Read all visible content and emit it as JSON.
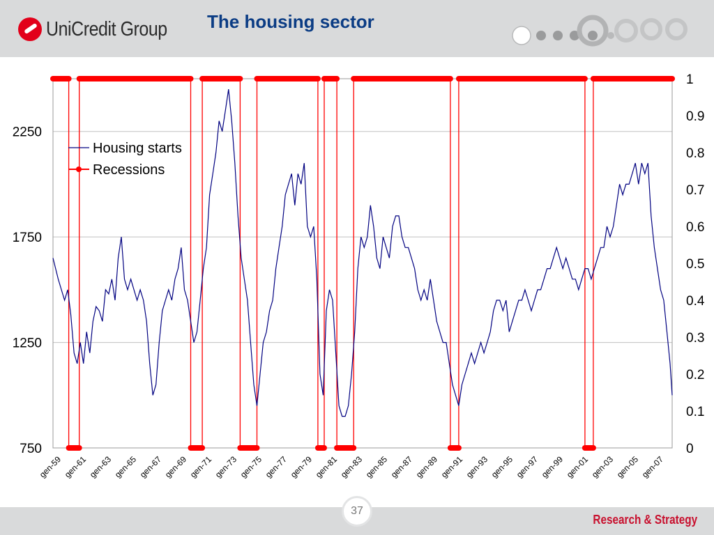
{
  "header": {
    "logo_text": "UniCredit Group",
    "title": "The housing sector"
  },
  "footer": {
    "page_number": "37",
    "brand": "Research & Strategy"
  },
  "colors": {
    "header_bg": "#d9dadb",
    "title": "#0b3c84",
    "housing_line": "#000080",
    "recession": "#ff0000",
    "brand_red": "#e2001a"
  },
  "chart_data": {
    "type": "line",
    "title": "",
    "legend": {
      "placement": "top-left",
      "items": [
        "Housing starts",
        "Recessions"
      ]
    },
    "x_ticks": [
      "gen-59",
      "gen-61",
      "gen-63",
      "gen-65",
      "gen-67",
      "gen-69",
      "gen-71",
      "gen-73",
      "gen-75",
      "gen-77",
      "gen-79",
      "gen-81",
      "gen-83",
      "gen-85",
      "gen-87",
      "gen-89",
      "gen-91",
      "gen-93",
      "gen-95",
      "gen-97",
      "gen-99",
      "gen-01",
      "gen-03",
      "gen-05",
      "gen-07"
    ],
    "x_range": [
      "1959-01",
      "2008-02"
    ],
    "y_left": {
      "ticks": [
        "750",
        "1250",
        "1750",
        "2250"
      ],
      "range": [
        750,
        2500
      ]
    },
    "y_right": {
      "ticks": [
        "0",
        "0.1",
        "0.2",
        "0.3",
        "0.4",
        "0.5",
        "0.6",
        "0.7",
        "0.8",
        "0.9",
        "1"
      ],
      "range": [
        0,
        1
      ]
    },
    "grid": "horizontal",
    "series": [
      {
        "name": "Housing starts",
        "axis": "left",
        "points": [
          [
            "1959-01",
            1650
          ],
          [
            "1959-06",
            1550
          ],
          [
            "1959-12",
            1450
          ],
          [
            "1960-03",
            1500
          ],
          [
            "1960-06",
            1380
          ],
          [
            "1960-09",
            1200
          ],
          [
            "1960-12",
            1150
          ],
          [
            "1961-03",
            1250
          ],
          [
            "1961-06",
            1150
          ],
          [
            "1961-09",
            1300
          ],
          [
            "1961-12",
            1200
          ],
          [
            "1962-03",
            1350
          ],
          [
            "1962-06",
            1420
          ],
          [
            "1962-09",
            1400
          ],
          [
            "1962-12",
            1350
          ],
          [
            "1963-03",
            1500
          ],
          [
            "1963-06",
            1480
          ],
          [
            "1963-09",
            1550
          ],
          [
            "1963-12",
            1450
          ],
          [
            "1964-03",
            1650
          ],
          [
            "1964-06",
            1750
          ],
          [
            "1964-09",
            1550
          ],
          [
            "1964-12",
            1500
          ],
          [
            "1965-03",
            1550
          ],
          [
            "1965-06",
            1500
          ],
          [
            "1965-09",
            1450
          ],
          [
            "1965-12",
            1500
          ],
          [
            "1966-03",
            1450
          ],
          [
            "1966-06",
            1350
          ],
          [
            "1966-09",
            1150
          ],
          [
            "1966-12",
            1000
          ],
          [
            "1967-03",
            1050
          ],
          [
            "1967-06",
            1250
          ],
          [
            "1967-09",
            1400
          ],
          [
            "1967-12",
            1450
          ],
          [
            "1968-03",
            1500
          ],
          [
            "1968-06",
            1450
          ],
          [
            "1968-09",
            1550
          ],
          [
            "1968-12",
            1600
          ],
          [
            "1969-03",
            1700
          ],
          [
            "1969-06",
            1500
          ],
          [
            "1969-09",
            1450
          ],
          [
            "1969-12",
            1350
          ],
          [
            "1970-03",
            1250
          ],
          [
            "1970-06",
            1300
          ],
          [
            "1970-09",
            1450
          ],
          [
            "1970-12",
            1600
          ],
          [
            "1971-03",
            1700
          ],
          [
            "1971-06",
            1950
          ],
          [
            "1971-09",
            2050
          ],
          [
            "1971-12",
            2150
          ],
          [
            "1972-03",
            2300
          ],
          [
            "1972-06",
            2250
          ],
          [
            "1972-09",
            2350
          ],
          [
            "1972-12",
            2450
          ],
          [
            "1973-03",
            2300
          ],
          [
            "1973-06",
            2100
          ],
          [
            "1973-09",
            1850
          ],
          [
            "1973-12",
            1650
          ],
          [
            "1974-03",
            1550
          ],
          [
            "1974-06",
            1450
          ],
          [
            "1974-09",
            1250
          ],
          [
            "1974-12",
            1050
          ],
          [
            "1975-03",
            950
          ],
          [
            "1975-06",
            1100
          ],
          [
            "1975-09",
            1250
          ],
          [
            "1975-12",
            1300
          ],
          [
            "1976-03",
            1400
          ],
          [
            "1976-06",
            1450
          ],
          [
            "1976-09",
            1600
          ],
          [
            "1976-12",
            1700
          ],
          [
            "1977-03",
            1800
          ],
          [
            "1977-06",
            1950
          ],
          [
            "1977-09",
            2000
          ],
          [
            "1977-12",
            2050
          ],
          [
            "1978-03",
            1900
          ],
          [
            "1978-06",
            2050
          ],
          [
            "1978-09",
            2000
          ],
          [
            "1978-12",
            2100
          ],
          [
            "1979-03",
            1800
          ],
          [
            "1979-06",
            1750
          ],
          [
            "1979-09",
            1800
          ],
          [
            "1979-12",
            1550
          ],
          [
            "1980-03",
            1100
          ],
          [
            "1980-06",
            1000
          ],
          [
            "1980-09",
            1400
          ],
          [
            "1980-12",
            1500
          ],
          [
            "1981-03",
            1450
          ],
          [
            "1981-06",
            1200
          ],
          [
            "1981-09",
            950
          ],
          [
            "1981-12",
            900
          ],
          [
            "1982-03",
            900
          ],
          [
            "1982-06",
            950
          ],
          [
            "1982-09",
            1100
          ],
          [
            "1982-12",
            1300
          ],
          [
            "1983-03",
            1600
          ],
          [
            "1983-06",
            1750
          ],
          [
            "1983-09",
            1700
          ],
          [
            "1983-12",
            1750
          ],
          [
            "1984-03",
            1900
          ],
          [
            "1984-06",
            1800
          ],
          [
            "1984-09",
            1650
          ],
          [
            "1984-12",
            1600
          ],
          [
            "1985-03",
            1750
          ],
          [
            "1985-06",
            1700
          ],
          [
            "1985-09",
            1650
          ],
          [
            "1985-12",
            1800
          ],
          [
            "1986-03",
            1850
          ],
          [
            "1986-06",
            1850
          ],
          [
            "1986-09",
            1750
          ],
          [
            "1986-12",
            1700
          ],
          [
            "1987-03",
            1700
          ],
          [
            "1987-06",
            1650
          ],
          [
            "1987-09",
            1600
          ],
          [
            "1987-12",
            1500
          ],
          [
            "1988-03",
            1450
          ],
          [
            "1988-06",
            1500
          ],
          [
            "1988-09",
            1450
          ],
          [
            "1988-12",
            1550
          ],
          [
            "1989-03",
            1450
          ],
          [
            "1989-06",
            1350
          ],
          [
            "1989-09",
            1300
          ],
          [
            "1989-12",
            1250
          ],
          [
            "1990-03",
            1250
          ],
          [
            "1990-06",
            1150
          ],
          [
            "1990-09",
            1050
          ],
          [
            "1990-12",
            1000
          ],
          [
            "1991-03",
            950
          ],
          [
            "1991-06",
            1050
          ],
          [
            "1991-09",
            1100
          ],
          [
            "1991-12",
            1150
          ],
          [
            "1992-03",
            1200
          ],
          [
            "1992-06",
            1150
          ],
          [
            "1992-09",
            1200
          ],
          [
            "1992-12",
            1250
          ],
          [
            "1993-03",
            1200
          ],
          [
            "1993-06",
            1250
          ],
          [
            "1993-09",
            1300
          ],
          [
            "1993-12",
            1400
          ],
          [
            "1994-03",
            1450
          ],
          [
            "1994-06",
            1450
          ],
          [
            "1994-09",
            1400
          ],
          [
            "1994-12",
            1450
          ],
          [
            "1995-03",
            1300
          ],
          [
            "1995-06",
            1350
          ],
          [
            "1995-09",
            1400
          ],
          [
            "1995-12",
            1450
          ],
          [
            "1996-03",
            1450
          ],
          [
            "1996-06",
            1500
          ],
          [
            "1996-09",
            1450
          ],
          [
            "1996-12",
            1400
          ],
          [
            "1997-03",
            1450
          ],
          [
            "1997-06",
            1500
          ],
          [
            "1997-09",
            1500
          ],
          [
            "1997-12",
            1550
          ],
          [
            "1998-03",
            1600
          ],
          [
            "1998-06",
            1600
          ],
          [
            "1998-09",
            1650
          ],
          [
            "1998-12",
            1700
          ],
          [
            "1999-03",
            1650
          ],
          [
            "1999-06",
            1600
          ],
          [
            "1999-09",
            1650
          ],
          [
            "1999-12",
            1600
          ],
          [
            "2000-03",
            1550
          ],
          [
            "2000-06",
            1550
          ],
          [
            "2000-09",
            1500
          ],
          [
            "2000-12",
            1550
          ],
          [
            "2001-03",
            1600
          ],
          [
            "2001-06",
            1600
          ],
          [
            "2001-09",
            1550
          ],
          [
            "2001-12",
            1600
          ],
          [
            "2002-03",
            1650
          ],
          [
            "2002-06",
            1700
          ],
          [
            "2002-09",
            1700
          ],
          [
            "2002-12",
            1800
          ],
          [
            "2003-03",
            1750
          ],
          [
            "2003-06",
            1800
          ],
          [
            "2003-09",
            1900
          ],
          [
            "2003-12",
            2000
          ],
          [
            "2004-03",
            1950
          ],
          [
            "2004-06",
            2000
          ],
          [
            "2004-09",
            2000
          ],
          [
            "2004-12",
            2050
          ],
          [
            "2005-03",
            2100
          ],
          [
            "2005-06",
            2000
          ],
          [
            "2005-09",
            2100
          ],
          [
            "2005-12",
            2050
          ],
          [
            "2006-03",
            2100
          ],
          [
            "2006-06",
            1850
          ],
          [
            "2006-09",
            1700
          ],
          [
            "2006-12",
            1600
          ],
          [
            "2007-03",
            1500
          ],
          [
            "2007-06",
            1450
          ],
          [
            "2007-09",
            1300
          ],
          [
            "2007-12",
            1150
          ],
          [
            "2008-02",
            1000
          ]
        ]
      },
      {
        "name": "Recessions",
        "axis": "right",
        "recession_periods": [
          [
            "1960-04",
            "1961-02"
          ],
          [
            "1969-12",
            "1970-11"
          ],
          [
            "1973-11",
            "1975-03"
          ],
          [
            "1980-01",
            "1980-07"
          ],
          [
            "1981-07",
            "1982-11"
          ],
          [
            "1990-07",
            "1991-03"
          ],
          [
            "2001-03",
            "2001-11"
          ]
        ]
      }
    ]
  }
}
